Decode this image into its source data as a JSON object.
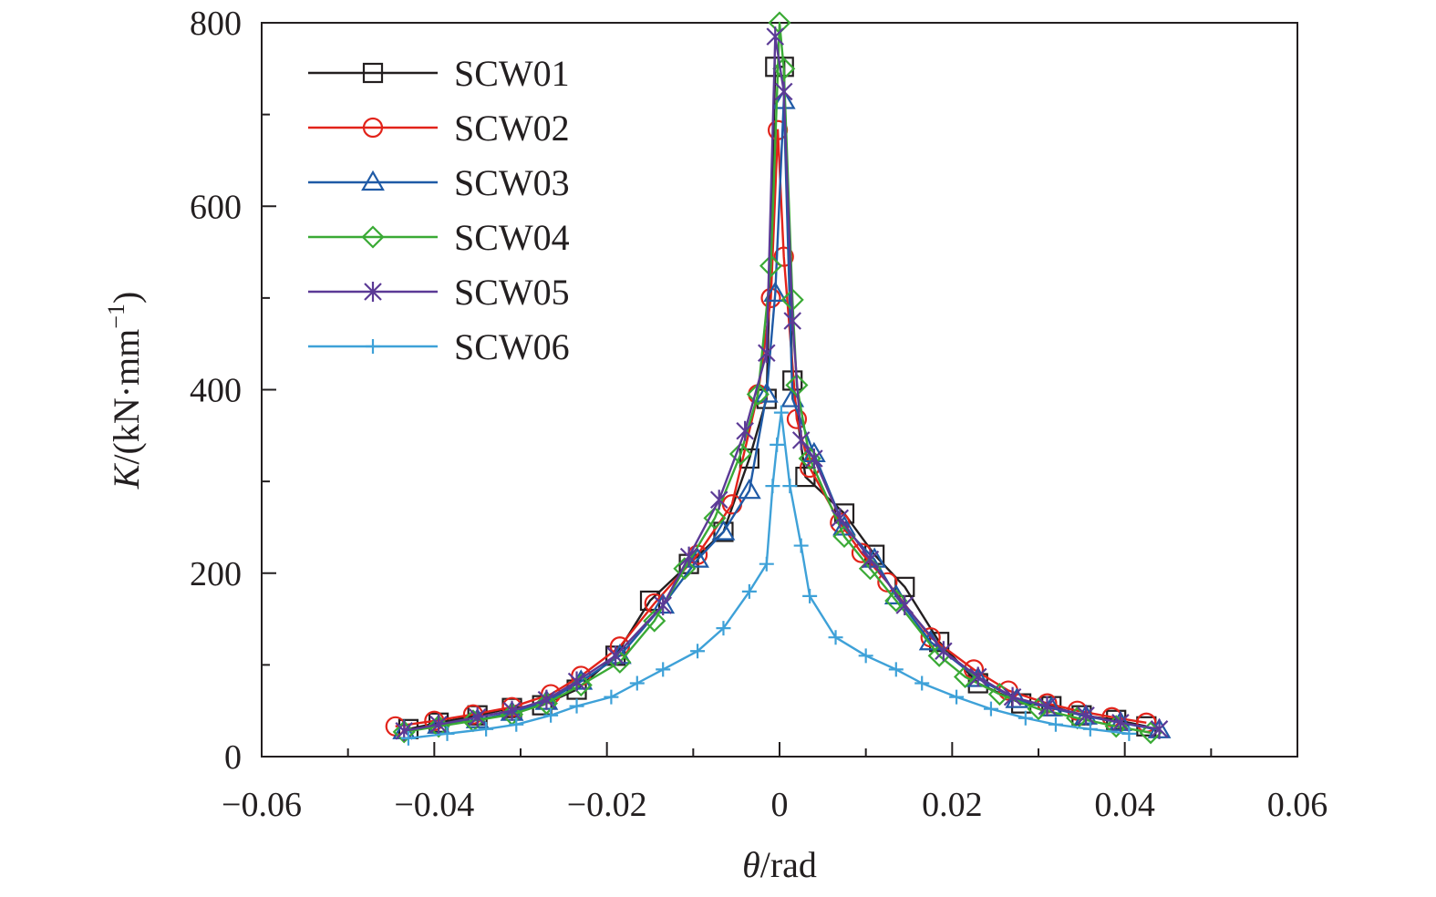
{
  "chart_data": {
    "type": "line",
    "xlabel": {
      "var": "θ",
      "unit": "/rad"
    },
    "ylabel": {
      "var": "K",
      "unit": "/(kN·mm",
      "sup": "−1",
      "close": ")"
    },
    "xlim": [
      -0.06,
      0.06
    ],
    "ylim": [
      0,
      800
    ],
    "xticks": [
      -0.06,
      -0.04,
      -0.02,
      0,
      0.02,
      0.04,
      0.06
    ],
    "xtick_labels": [
      "−0.06",
      "−0.04",
      "−0.02",
      "0",
      "0.02",
      "0.04",
      "0.06"
    ],
    "yticks": [
      0,
      200,
      400,
      600,
      800
    ],
    "ytick_labels": [
      "0",
      "200",
      "400",
      "600",
      "800"
    ],
    "grid": false,
    "legend_position": "top-left",
    "series": [
      {
        "name": "SCW01",
        "color": "#231f20",
        "marker": "square",
        "x": [
          -0.043,
          -0.0395,
          -0.035,
          -0.031,
          -0.0275,
          -0.0235,
          -0.019,
          -0.015,
          -0.0105,
          -0.0065,
          -0.0035,
          -0.0015,
          -0.0005,
          0.0005,
          0.0015,
          0.003,
          0.0075,
          0.011,
          0.0145,
          0.0185,
          0.023,
          0.028,
          0.0315,
          0.035,
          0.039,
          0.0425
        ],
        "y": [
          30,
          37,
          45,
          53,
          56,
          73,
          110,
          170,
          210,
          245,
          325,
          390,
          752,
          752,
          410,
          305,
          265,
          220,
          185,
          125,
          80,
          58,
          55,
          45,
          40,
          33
        ]
      },
      {
        "name": "SCW02",
        "color": "#e2231a",
        "marker": "circle",
        "x": [
          -0.0445,
          -0.04,
          -0.0355,
          -0.031,
          -0.0265,
          -0.023,
          -0.0185,
          -0.0145,
          -0.0095,
          -0.0055,
          -0.0025,
          -0.001,
          -0.0002,
          0.0005,
          0.002,
          0.0035,
          0.007,
          0.0095,
          0.0125,
          0.0175,
          0.0225,
          0.0265,
          0.031,
          0.0345,
          0.0385,
          0.0425
        ],
        "y": [
          33,
          39,
          46,
          54,
          68,
          88,
          120,
          167,
          220,
          275,
          395,
          500,
          683,
          545,
          368,
          315,
          255,
          222,
          190,
          130,
          95,
          72,
          58,
          50,
          43,
          37
        ]
      },
      {
        "name": "SCW03",
        "color": "#1f5aa6",
        "marker": "triangle",
        "x": [
          -0.0435,
          -0.0395,
          -0.035,
          -0.031,
          -0.027,
          -0.023,
          -0.0185,
          -0.0135,
          -0.0095,
          -0.0065,
          -0.0035,
          -0.0015,
          -0.0005,
          0.0005,
          0.0015,
          0.004,
          0.0075,
          0.011,
          0.0135,
          0.0175,
          0.023,
          0.0275,
          0.0315,
          0.0355,
          0.0395,
          0.044
        ],
        "y": [
          28,
          34,
          40,
          48,
          60,
          82,
          110,
          165,
          215,
          245,
          290,
          395,
          505,
          715,
          390,
          330,
          250,
          215,
          175,
          125,
          85,
          62,
          53,
          44,
          37,
          29
        ]
      },
      {
        "name": "SCW04",
        "color": "#3aaa35",
        "marker": "diamond",
        "x": [
          -0.0435,
          -0.0395,
          -0.0355,
          -0.031,
          -0.027,
          -0.023,
          -0.0185,
          -0.0145,
          -0.011,
          -0.0075,
          -0.0045,
          -0.0025,
          -0.001,
          0.0,
          0.0005,
          0.0015,
          0.002,
          0.0035,
          0.0075,
          0.0105,
          0.0135,
          0.0185,
          0.0215,
          0.0255,
          0.03,
          0.0345,
          0.039,
          0.043
        ],
        "y": [
          27,
          33,
          39,
          46,
          58,
          78,
          103,
          148,
          205,
          260,
          330,
          395,
          535,
          800,
          750,
          498,
          405,
          325,
          240,
          205,
          170,
          110,
          87,
          68,
          52,
          42,
          33,
          26
        ]
      },
      {
        "name": "SCW05",
        "color": "#5b3a96",
        "marker": "star",
        "x": [
          -0.0435,
          -0.0395,
          -0.035,
          -0.031,
          -0.027,
          -0.0235,
          -0.019,
          -0.0135,
          -0.0105,
          -0.007,
          -0.004,
          -0.0015,
          -0.0005,
          0.0005,
          0.0015,
          0.0025,
          0.004,
          0.007,
          0.0105,
          0.0145,
          0.019,
          0.023,
          0.027,
          0.031,
          0.0355,
          0.0395,
          0.044
        ],
        "y": [
          28,
          35,
          43,
          50,
          62,
          82,
          110,
          165,
          218,
          280,
          355,
          440,
          785,
          725,
          475,
          345,
          325,
          260,
          215,
          165,
          115,
          87,
          65,
          55,
          45,
          37,
          30
        ]
      },
      {
        "name": "SCW06",
        "color": "#3ea1d8",
        "marker": "plus",
        "x": [
          -0.043,
          -0.0385,
          -0.034,
          -0.0305,
          -0.0265,
          -0.0235,
          -0.0195,
          -0.0165,
          -0.0135,
          -0.0095,
          -0.0065,
          -0.0035,
          -0.0015,
          -0.0008,
          -0.0003,
          0.0002,
          0.0012,
          0.0025,
          0.0035,
          0.0065,
          0.01,
          0.0135,
          0.0165,
          0.0205,
          0.0245,
          0.0285,
          0.032,
          0.036,
          0.0405
        ],
        "y": [
          20,
          25,
          30,
          35,
          45,
          55,
          65,
          80,
          95,
          115,
          140,
          180,
          210,
          295,
          340,
          375,
          295,
          230,
          175,
          130,
          110,
          95,
          80,
          65,
          52,
          42,
          35,
          30,
          25
        ]
      }
    ]
  }
}
